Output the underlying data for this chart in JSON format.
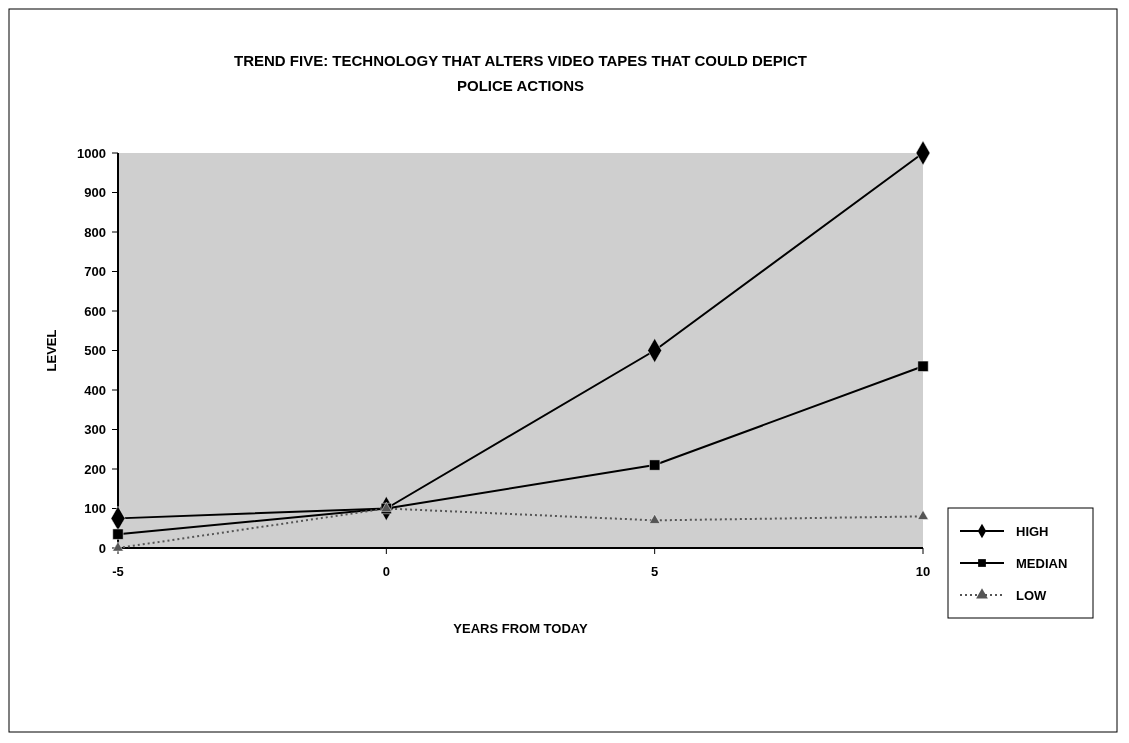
{
  "chart_data": {
    "type": "line",
    "title": "TREND FIVE: TECHNOLOGY THAT ALTERS VIDEO TAPES THAT COULD DEPICT POLICE ACTIONS",
    "xlabel": "YEARS FROM TODAY",
    "ylabel": "LEVEL",
    "x": [
      -5,
      0,
      5,
      10
    ],
    "xlim": [
      -5,
      10
    ],
    "xticks": [
      -5,
      0,
      5,
      10
    ],
    "ylim": [
      0,
      1000
    ],
    "yticks": [
      0,
      100,
      200,
      300,
      400,
      500,
      600,
      700,
      800,
      900,
      1000
    ],
    "legend": "bottom right",
    "grid": false,
    "series": [
      {
        "name": "HIGH",
        "color": "#000000",
        "values": [
          75,
          100,
          500,
          1000
        ],
        "marker": "diamond",
        "line_style": "solid"
      },
      {
        "name": "MEDIAN",
        "color": "#000000",
        "values": [
          35,
          100,
          210,
          460
        ],
        "marker": "square",
        "line_style": "solid"
      },
      {
        "name": "LOW",
        "color": "#555555",
        "values": [
          0,
          100,
          70,
          80
        ],
        "marker": "triangle",
        "line_style": "dotted"
      }
    ]
  }
}
